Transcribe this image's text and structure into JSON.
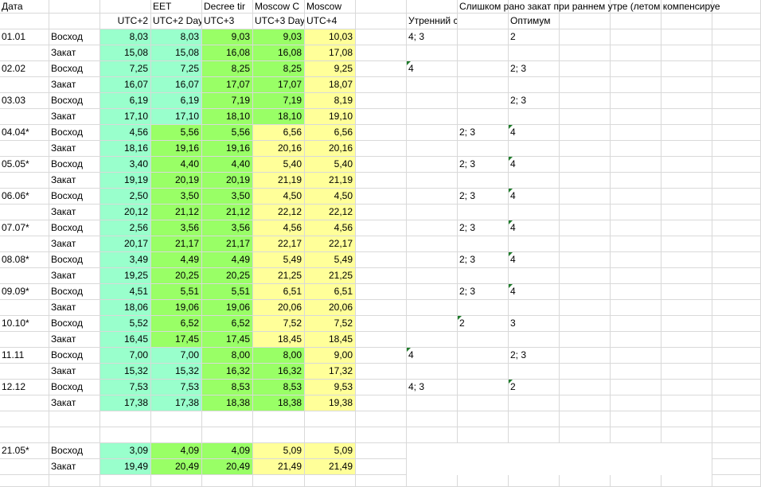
{
  "colors": {
    "teal": "#99ffcc",
    "green": "#99ff66",
    "yellow": "#ffff99",
    "grid": "#d9d9d9"
  },
  "header_row1": [
    {
      "col": 0,
      "text": "Дата"
    },
    {
      "col": 3,
      "text": "EET"
    },
    {
      "col": 4,
      "text": "Decree tir"
    },
    {
      "col": 5,
      "text": "Moscow C"
    },
    {
      "col": 6,
      "text": "Moscow"
    },
    {
      "col": 9,
      "text": "Слишком рано закат при раннем утре (летом компенсируе",
      "overflow": true
    }
  ],
  "header_row2": [
    {
      "col": 2,
      "text": "UTC+2"
    },
    {
      "col": 3,
      "text": "UTC+2 Day"
    },
    {
      "col": 4,
      "text": "UTC+3"
    },
    {
      "col": 5,
      "text": "UTC+3 Day"
    },
    {
      "col": 6,
      "text": "UTC+4"
    },
    {
      "col": 8,
      "text": "Утренний сон нару"
    },
    {
      "col": 10,
      "text": "Оптимум"
    }
  ],
  "rows": [
    {
      "date": "01.01",
      "label": "Восход",
      "values": [
        "8,03",
        "8,03",
        "9,03",
        "9,03",
        "10,03"
      ],
      "colors": [
        "teal",
        "teal",
        "green",
        "green",
        "yellow"
      ],
      "notes": {
        "8": "4; 3",
        "10": "2"
      }
    },
    {
      "date": "",
      "label": "Закат",
      "values": [
        "15,08",
        "15,08",
        "16,08",
        "16,08",
        "17,08"
      ],
      "colors": [
        "teal",
        "teal",
        "green",
        "green",
        "yellow"
      ],
      "notes": {}
    },
    {
      "date": "02.02",
      "label": "Восход",
      "values": [
        "7,25",
        "7,25",
        "8,25",
        "8,25",
        "9,25"
      ],
      "colors": [
        "teal",
        "teal",
        "green",
        "green",
        "yellow"
      ],
      "notes": {
        "8": "4",
        "10": "2; 3"
      },
      "flags": [
        8
      ]
    },
    {
      "date": "",
      "label": "Закат",
      "values": [
        "16,07",
        "16,07",
        "17,07",
        "17,07",
        "18,07"
      ],
      "colors": [
        "teal",
        "teal",
        "green",
        "green",
        "yellow"
      ],
      "notes": {}
    },
    {
      "date": "03.03",
      "label": "Восход",
      "values": [
        "6,19",
        "6,19",
        "7,19",
        "7,19",
        "8,19"
      ],
      "colors": [
        "teal",
        "teal",
        "green",
        "green",
        "yellow"
      ],
      "notes": {
        "10": "2; 3"
      }
    },
    {
      "date": "",
      "label": "Закат",
      "values": [
        "17,10",
        "17,10",
        "18,10",
        "18,10",
        "19,10"
      ],
      "colors": [
        "teal",
        "teal",
        "green",
        "green",
        "yellow"
      ],
      "notes": {}
    },
    {
      "date": "04.04*",
      "label": "Восход",
      "values": [
        "4,56",
        "5,56",
        "5,56",
        "6,56",
        "6,56"
      ],
      "colors": [
        "teal",
        "green",
        "green",
        "yellow",
        "yellow"
      ],
      "notes": {
        "9": "2; 3",
        "10": "4"
      },
      "flags": [
        10
      ]
    },
    {
      "date": "",
      "label": "Закат",
      "values": [
        "18,16",
        "19,16",
        "19,16",
        "20,16",
        "20,16"
      ],
      "colors": [
        "teal",
        "green",
        "green",
        "yellow",
        "yellow"
      ],
      "notes": {}
    },
    {
      "date": "05.05*",
      "label": "Восход",
      "values": [
        "3,40",
        "4,40",
        "4,40",
        "5,40",
        "5,40"
      ],
      "colors": [
        "teal",
        "green",
        "green",
        "yellow",
        "yellow"
      ],
      "notes": {
        "9": "2; 3",
        "10": "4"
      },
      "flags": [
        10
      ]
    },
    {
      "date": "",
      "label": "Закат",
      "values": [
        "19,19",
        "20,19",
        "20,19",
        "21,19",
        "21,19"
      ],
      "colors": [
        "teal",
        "green",
        "green",
        "yellow",
        "yellow"
      ],
      "notes": {}
    },
    {
      "date": "06.06*",
      "label": "Восход",
      "values": [
        "2,50",
        "3,50",
        "3,50",
        "4,50",
        "4,50"
      ],
      "colors": [
        "teal",
        "green",
        "green",
        "yellow",
        "yellow"
      ],
      "notes": {
        "9": "2; 3",
        "10": "4"
      },
      "flags": [
        10
      ]
    },
    {
      "date": "",
      "label": "Закат",
      "values": [
        "20,12",
        "21,12",
        "21,12",
        "22,12",
        "22,12"
      ],
      "colors": [
        "teal",
        "green",
        "green",
        "yellow",
        "yellow"
      ],
      "notes": {}
    },
    {
      "date": "07.07*",
      "label": "Восход",
      "values": [
        "2,56",
        "3,56",
        "3,56",
        "4,56",
        "4,56"
      ],
      "colors": [
        "teal",
        "green",
        "green",
        "yellow",
        "yellow"
      ],
      "notes": {
        "9": "2; 3",
        "10": "4"
      },
      "flags": [
        10
      ]
    },
    {
      "date": "",
      "label": "Закат",
      "values": [
        "20,17",
        "21,17",
        "21,17",
        "22,17",
        "22,17"
      ],
      "colors": [
        "teal",
        "green",
        "green",
        "yellow",
        "yellow"
      ],
      "notes": {}
    },
    {
      "date": "08.08*",
      "label": "Восход",
      "values": [
        "3,49",
        "4,49",
        "4,49",
        "5,49",
        "5,49"
      ],
      "colors": [
        "teal",
        "green",
        "green",
        "yellow",
        "yellow"
      ],
      "notes": {
        "9": "2; 3",
        "10": "4"
      },
      "flags": [
        10
      ]
    },
    {
      "date": "",
      "label": "Закат",
      "values": [
        "19,25",
        "20,25",
        "20,25",
        "21,25",
        "21,25"
      ],
      "colors": [
        "teal",
        "green",
        "green",
        "yellow",
        "yellow"
      ],
      "notes": {}
    },
    {
      "date": "09.09*",
      "label": "Восход",
      "values": [
        "4,51",
        "5,51",
        "5,51",
        "6,51",
        "6,51"
      ],
      "colors": [
        "teal",
        "green",
        "green",
        "yellow",
        "yellow"
      ],
      "notes": {
        "9": "2; 3",
        "10": "4"
      },
      "flags": [
        10
      ]
    },
    {
      "date": "",
      "label": "Закат",
      "values": [
        "18,06",
        "19,06",
        "19,06",
        "20,06",
        "20,06"
      ],
      "colors": [
        "teal",
        "green",
        "green",
        "yellow",
        "yellow"
      ],
      "notes": {}
    },
    {
      "date": "10.10*",
      "label": "Восход",
      "values": [
        "5,52",
        "6,52",
        "6,52",
        "7,52",
        "7,52"
      ],
      "colors": [
        "teal",
        "green",
        "green",
        "yellow",
        "yellow"
      ],
      "notes": {
        "9": "2",
        "10": "3"
      },
      "flags": [
        9
      ]
    },
    {
      "date": "",
      "label": "Закат",
      "values": [
        "16,45",
        "17,45",
        "17,45",
        "18,45",
        "18,45"
      ],
      "colors": [
        "teal",
        "green",
        "green",
        "yellow",
        "yellow"
      ],
      "notes": {}
    },
    {
      "date": "11.11",
      "label": "Восход",
      "values": [
        "7,00",
        "7,00",
        "8,00",
        "8,00",
        "9,00"
      ],
      "colors": [
        "teal",
        "teal",
        "green",
        "green",
        "yellow"
      ],
      "notes": {
        "8": "4",
        "10": "2; 3"
      },
      "flags": [
        8
      ]
    },
    {
      "date": "",
      "label": "Закат",
      "values": [
        "15,32",
        "15,32",
        "16,32",
        "16,32",
        "17,32"
      ],
      "colors": [
        "teal",
        "teal",
        "green",
        "green",
        "yellow"
      ],
      "notes": {}
    },
    {
      "date": "12.12",
      "label": "Восход",
      "values": [
        "7,53",
        "7,53",
        "8,53",
        "8,53",
        "9,53"
      ],
      "colors": [
        "teal",
        "teal",
        "green",
        "green",
        "yellow"
      ],
      "notes": {
        "8": "4; 3",
        "10": "2"
      },
      "flags": [
        10
      ]
    },
    {
      "date": "",
      "label": "Закат",
      "values": [
        "17,38",
        "17,38",
        "18,38",
        "18,38",
        "19,38"
      ],
      "colors": [
        "teal",
        "teal",
        "green",
        "green",
        "yellow"
      ],
      "notes": {}
    },
    {
      "date": "",
      "label": "",
      "values": [
        "",
        "",
        "",
        "",
        ""
      ],
      "colors": [
        "",
        "",
        "",
        "",
        ""
      ],
      "notes": {}
    },
    {
      "date": "",
      "label": "",
      "values": [
        "",
        "",
        "",
        "",
        ""
      ],
      "colors": [
        "",
        "",
        "",
        "",
        ""
      ],
      "notes": {}
    },
    {
      "date": "21.05*",
      "label": "Восход",
      "values": [
        "3,09",
        "4,09",
        "4,09",
        "5,09",
        "5,09"
      ],
      "colors": [
        "teal",
        "green",
        "green",
        "yellow",
        "yellow"
      ],
      "notes": {}
    },
    {
      "date": "",
      "label": "Закат",
      "values": [
        "19,49",
        "20,49",
        "20,49",
        "21,49",
        "21,49"
      ],
      "colors": [
        "teal",
        "green",
        "green",
        "yellow",
        "yellow"
      ],
      "notes": {}
    }
  ]
}
